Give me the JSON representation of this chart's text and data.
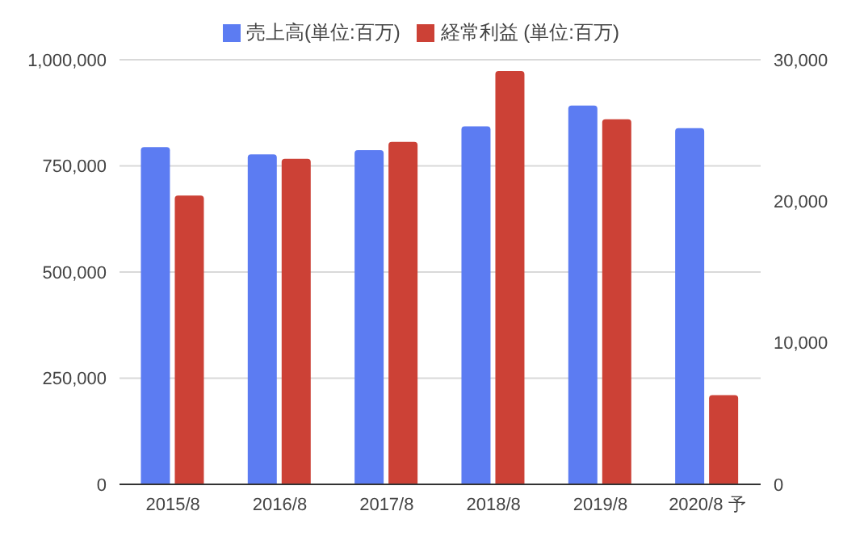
{
  "chart_data": {
    "type": "bar",
    "categories": [
      "2015/8",
      "2016/8",
      "2017/8",
      "2018/8",
      "2019/8",
      "2020/8 予"
    ],
    "series": [
      {
        "name": "売上高(単位:百万)",
        "color": "#5c7cf2",
        "values": [
          794000,
          777000,
          787000,
          843000,
          892000,
          839000
        ]
      },
      {
        "name": "経常利益 (単位:百万)",
        "color": "#cc4136",
        "axis": "y2",
        "values": [
          20400,
          23000,
          24200,
          29200,
          25800,
          6300
        ]
      }
    ],
    "ylim": [
      0,
      1000000
    ],
    "yticks": [
      {
        "value": 0,
        "label": "0"
      },
      {
        "value": 250000,
        "label": "250,000"
      },
      {
        "value": 500000,
        "label": "500,000"
      },
      {
        "value": 750000,
        "label": "750,000"
      },
      {
        "value": 1000000,
        "label": "1,000,000"
      }
    ],
    "y2lim": [
      0,
      30000
    ],
    "y2ticks": [
      {
        "value": 0,
        "label": "0"
      },
      {
        "value": 10000,
        "label": "10,000"
      },
      {
        "value": 20000,
        "label": "20,000"
      },
      {
        "value": 30000,
        "label": "30,000"
      }
    ],
    "grid": "y",
    "legend": "top"
  }
}
